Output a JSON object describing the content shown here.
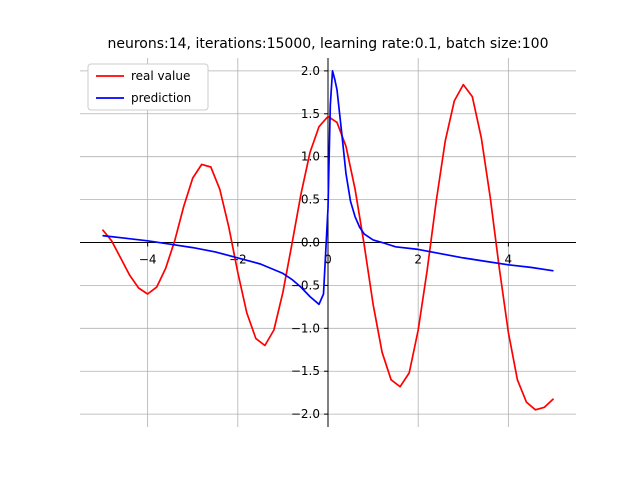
{
  "chart_data": {
    "type": "line",
    "title": "neurons:14, iterations:15000, learning rate:0.1, batch size:100",
    "xlabel": "",
    "ylabel": "",
    "xlim": [
      -5.5,
      5.5
    ],
    "ylim": [
      -2.15,
      2.15
    ],
    "xticks": [
      -4,
      -2,
      0,
      2,
      4
    ],
    "xtick_labels": [
      "−4",
      "−2",
      "0",
      "2",
      "4"
    ],
    "yticks": [
      -2.0,
      -1.5,
      -1.0,
      -0.5,
      0.0,
      0.5,
      1.0,
      1.5,
      2.0
    ],
    "ytick_labels": [
      "−2.0",
      "−1.5",
      "−1.0",
      "−0.5",
      "0.0",
      "0.5",
      "1.0",
      "1.5",
      "2.0"
    ],
    "grid": true,
    "legend_position": "top-left",
    "series": [
      {
        "name": "real value",
        "color": "#ff0000",
        "x": [
          -5.0,
          -4.8,
          -4.6,
          -4.4,
          -4.2,
          -4.0,
          -3.8,
          -3.6,
          -3.4,
          -3.2,
          -3.0,
          -2.8,
          -2.6,
          -2.4,
          -2.2,
          -2.0,
          -1.8,
          -1.6,
          -1.4,
          -1.2,
          -1.0,
          -0.8,
          -0.6,
          -0.4,
          -0.2,
          0.0,
          0.2,
          0.4,
          0.6,
          0.8,
          1.0,
          1.2,
          1.4,
          1.6,
          1.8,
          2.0,
          2.2,
          2.4,
          2.6,
          2.8,
          3.0,
          3.2,
          3.4,
          3.6,
          3.8,
          4.0,
          4.2,
          4.4,
          4.6,
          4.8,
          5.0
        ],
        "values": [
          0.15,
          0.02,
          -0.18,
          -0.38,
          -0.53,
          -0.6,
          -0.52,
          -0.3,
          0.02,
          0.42,
          0.75,
          0.91,
          0.88,
          0.62,
          0.18,
          -0.35,
          -0.82,
          -1.12,
          -1.2,
          -1.02,
          -0.58,
          -0.02,
          0.56,
          1.05,
          1.35,
          1.47,
          1.4,
          1.12,
          0.62,
          -0.02,
          -0.72,
          -1.28,
          -1.6,
          -1.68,
          -1.52,
          -1.02,
          -0.32,
          0.48,
          1.18,
          1.65,
          1.84,
          1.7,
          1.22,
          0.52,
          -0.3,
          -1.05,
          -1.6,
          -1.86,
          -1.95,
          -1.92,
          -1.82
        ]
      },
      {
        "name": "prediction",
        "color": "#0000ff",
        "x": [
          -5.0,
          -4.5,
          -4.0,
          -3.5,
          -3.0,
          -2.5,
          -2.0,
          -1.5,
          -1.0,
          -0.8,
          -0.6,
          -0.4,
          -0.2,
          -0.1,
          0.0,
          0.05,
          0.1,
          0.15,
          0.2,
          0.3,
          0.4,
          0.5,
          0.6,
          0.7,
          0.8,
          1.0,
          1.2,
          1.5,
          2.0,
          2.5,
          3.0,
          3.5,
          4.0,
          4.5,
          5.0
        ],
        "values": [
          0.08,
          0.05,
          0.02,
          -0.02,
          -0.06,
          -0.11,
          -0.18,
          -0.25,
          -0.36,
          -0.43,
          -0.52,
          -0.63,
          -0.72,
          -0.6,
          0.4,
          1.6,
          2.0,
          1.9,
          1.78,
          1.3,
          0.8,
          0.48,
          0.3,
          0.18,
          0.1,
          0.03,
          0.0,
          -0.05,
          -0.08,
          -0.13,
          -0.18,
          -0.22,
          -0.26,
          -0.29,
          -0.33
        ]
      }
    ]
  }
}
